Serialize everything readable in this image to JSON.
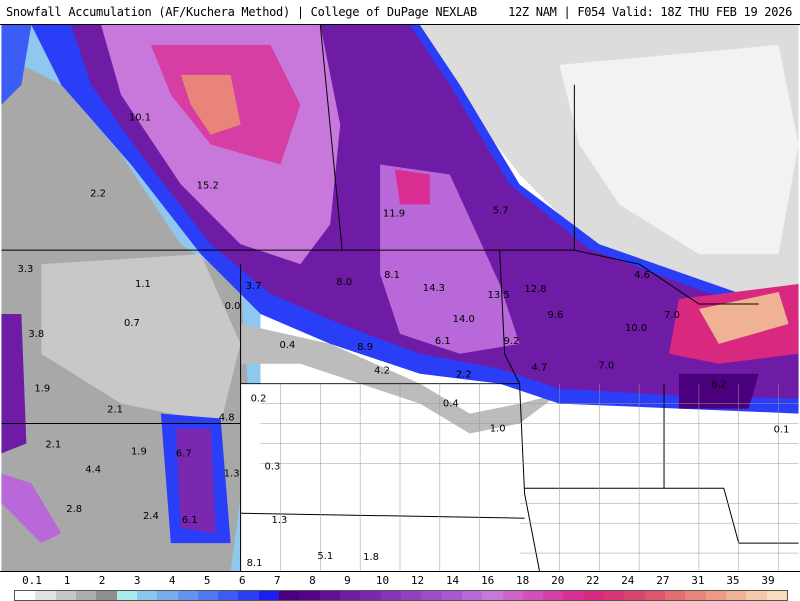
{
  "header": {
    "title": "Snowfall Accumulation (AF/Kuchera Method) | College of DuPage NEXLAB",
    "run_info": "12Z NAM | F054 Valid: 18Z THU FEB 19 2026"
  },
  "map": {
    "value_labels": [
      "10.1",
      "15.2",
      "2.2",
      "11.9",
      "5.7",
      "3.3",
      "1.1",
      "3.7",
      "8.0",
      "8.1",
      "14.3",
      "13.5",
      "12.8",
      "4.6",
      "0.0",
      "0.7",
      "3.8",
      "0.4",
      "8.9",
      "6.1",
      "14.0",
      "9.6",
      "10.0",
      "7.0",
      "9.2",
      "4.2",
      "2.2",
      "4.7",
      "7.0",
      "1.9",
      "0.2",
      "0.4",
      "6.2",
      "2.1",
      "4.8",
      "1.0",
      "0.1",
      "2.1",
      "1.9",
      "6.7",
      "4.4",
      "0.3",
      "1.3",
      "2.8",
      "2.4",
      "6.1",
      "1.3",
      "5.1",
      "1.8",
      "8.1"
    ]
  },
  "legend": {
    "labels": [
      "0.1",
      "1",
      "2",
      "3",
      "4",
      "5",
      "6",
      "7",
      "8",
      "9",
      "10",
      "12",
      "14",
      "16",
      "18",
      "20",
      "22",
      "24",
      "27",
      "31",
      "35",
      "39"
    ],
    "colors": [
      "#ffffff",
      "#e2e2e2",
      "#c6c6c6",
      "#acacac",
      "#8e8e8e",
      "#a8ecec",
      "#88c8ee",
      "#76aef0",
      "#6292f2",
      "#4e78f4",
      "#3c5cf6",
      "#2a3ef8",
      "#1a1ef0",
      "#4a007c",
      "#56008c",
      "#62109a",
      "#6e1ca6",
      "#7a28b0",
      "#8634ba",
      "#9240c2",
      "#9e4cca",
      "#aa58d2",
      "#b868d8",
      "#c878da",
      "#cf64c8",
      "#d250b8",
      "#d63ea4",
      "#d82e92",
      "#d82880",
      "#da3474",
      "#dc4470",
      "#e0566e",
      "#e46c72",
      "#e8847a",
      "#ec9c86",
      "#f0b294",
      "#f4c8a8",
      "#f8dcbe"
    ]
  }
}
